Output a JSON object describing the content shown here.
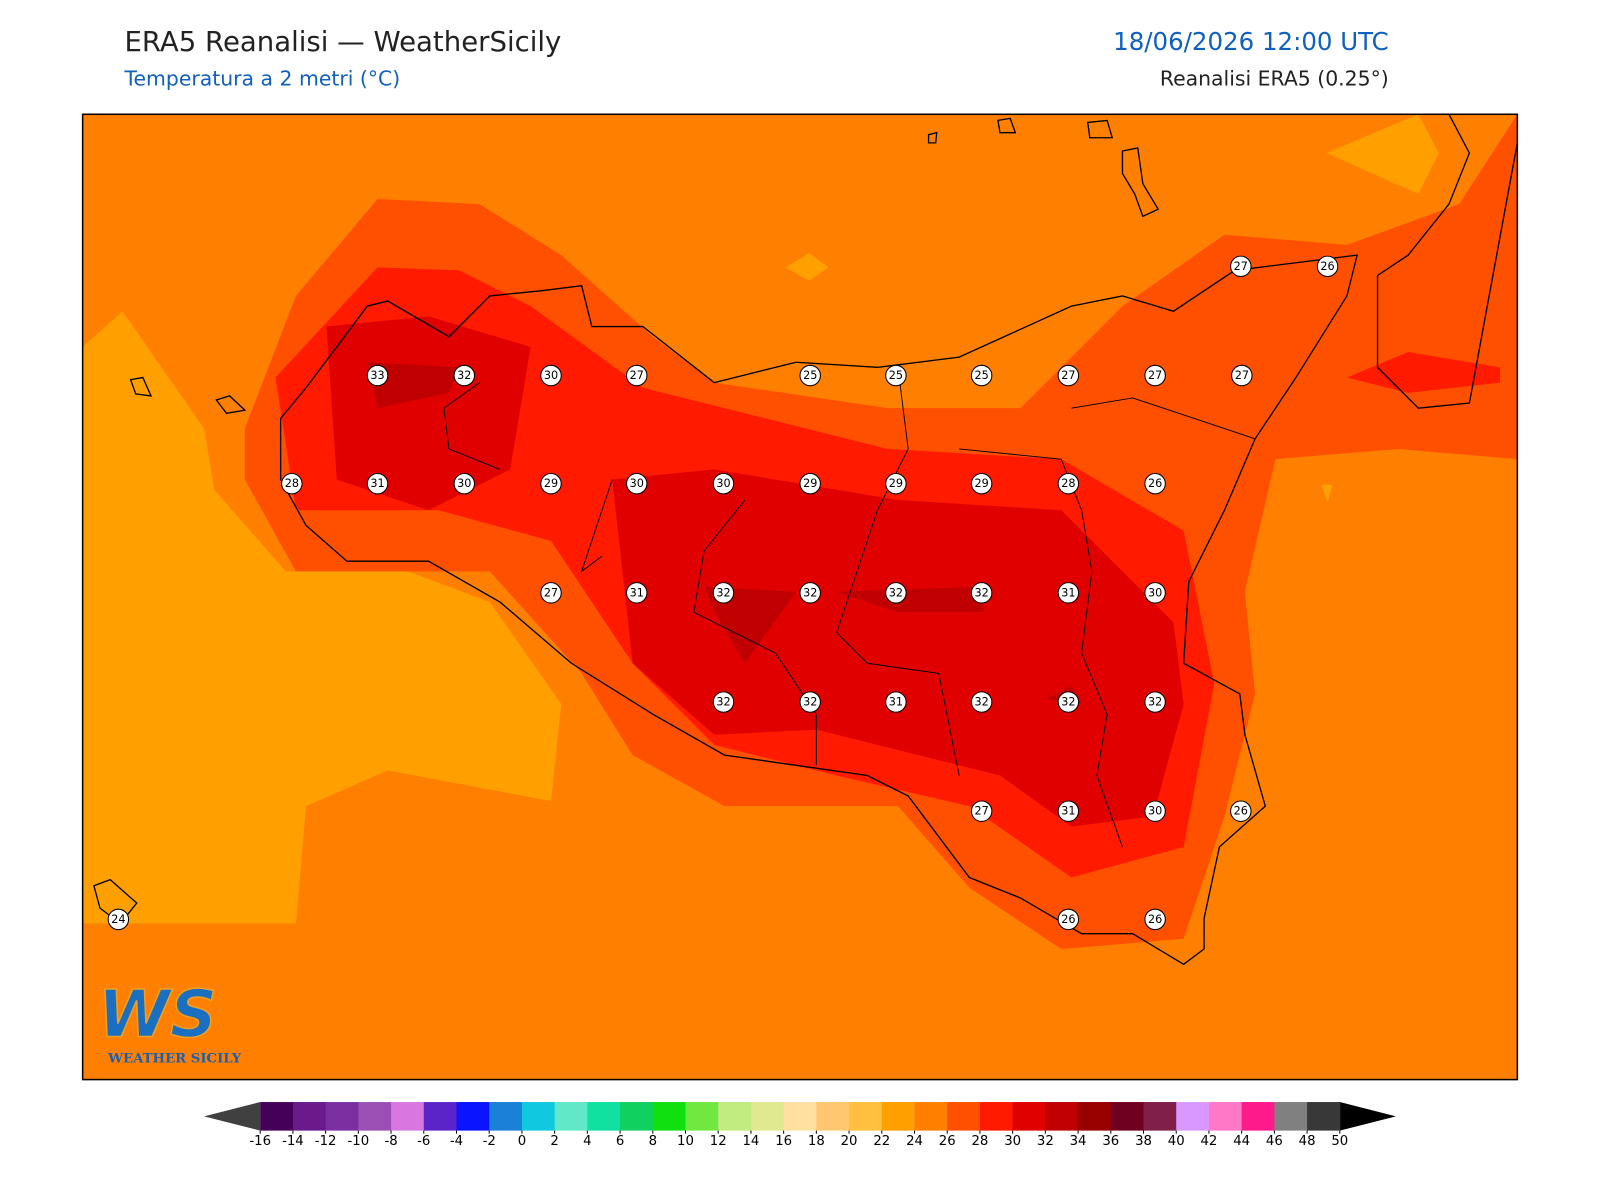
{
  "header": {
    "title": "ERA5 Reanalisi — WeatherSicily",
    "subtitle": "Temperatura a 2 metri (°C)",
    "valid_time": "18/06/2026 12:00 UTC",
    "source": "Reanalisi ERA5 (0.25°)"
  },
  "map": {
    "stations": [
      33,
      32,
      30,
      27,
      25,
      25,
      25,
      27,
      27,
      27,
      27,
      26,
      28,
      31,
      30,
      29,
      30,
      30,
      29,
      29,
      29,
      28,
      26,
      27,
      31,
      32,
      32,
      32,
      32,
      31,
      30,
      32,
      32,
      31,
      32,
      32,
      32,
      27,
      31,
      30,
      26,
      24,
      26,
      26
    ]
  },
  "colorbar": {
    "ticks": [
      -16,
      -14,
      -12,
      -10,
      -8,
      -6,
      -4,
      -2,
      0,
      2,
      4,
      6,
      8,
      10,
      12,
      14,
      16,
      18,
      20,
      22,
      24,
      26,
      28,
      30,
      32,
      34,
      36,
      38,
      40,
      42,
      44,
      46,
      48,
      50
    ],
    "colors": [
      "#45005a",
      "#6a1a8a",
      "#7b2fa0",
      "#9c4fb5",
      "#d877e0",
      "#5a24c8",
      "#0a14ff",
      "#1a80d8",
      "#10c8e0",
      "#60e8c8",
      "#10e0a0",
      "#10d060",
      "#10e010",
      "#70e840",
      "#c0ec80",
      "#e0e890",
      "#ffe0a0",
      "#ffc870",
      "#ffc040",
      "#ffa000",
      "#ff8000",
      "#ff5000",
      "#ff1a00",
      "#e00000",
      "#c00000",
      "#980000",
      "#700020",
      "#802048",
      "#d898ff",
      "#ff78c8",
      "#ff1a8c",
      "#808080",
      "#383838"
    ],
    "under_color": "#404040",
    "over_color": "#000000"
  },
  "logo": {
    "mark": "WS",
    "name": "WEATHER SICILY"
  }
}
